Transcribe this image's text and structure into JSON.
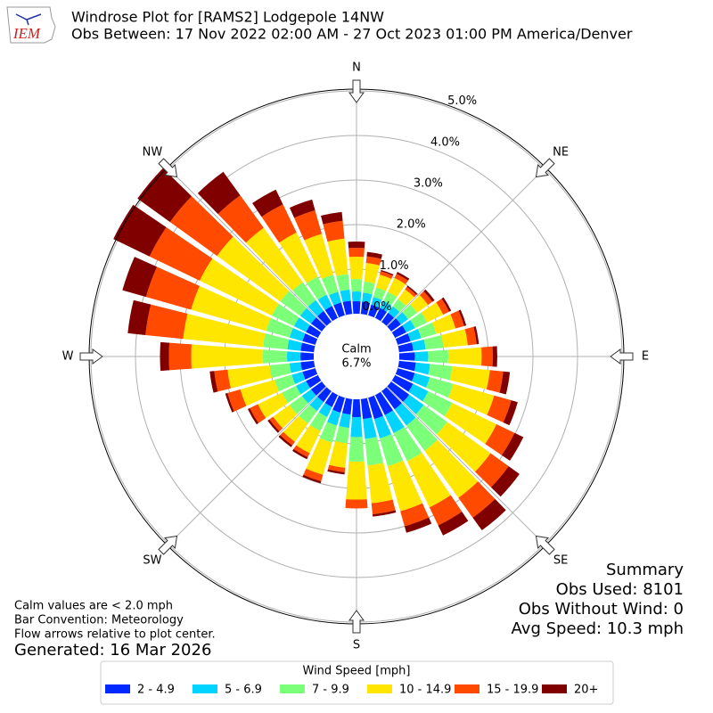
{
  "chart_data": {
    "type": "windrose",
    "logo_text": "IEM",
    "title": "Windrose Plot for [RAMS2] Lodgepole 14NW",
    "subtitle": "Obs Between: 17 Nov 2022 02:00 AM - 27 Oct 2023 01:00 PM America/Denver",
    "direction_labels": [
      "N",
      "NE",
      "E",
      "SE",
      "S",
      "SW",
      "W",
      "NW"
    ],
    "calm": {
      "label": "Calm",
      "value": 6.7,
      "value_label": "6.7%"
    },
    "x": [
      0,
      10,
      20,
      30,
      40,
      50,
      60,
      70,
      80,
      90,
      100,
      110,
      120,
      130,
      140,
      150,
      160,
      170,
      180,
      190,
      200,
      210,
      220,
      230,
      240,
      250,
      260,
      270,
      280,
      290,
      300,
      310,
      320,
      330,
      340,
      350
    ],
    "ylim": [
      0,
      5.04
    ],
    "yticks": [
      {
        "value": 0,
        "label": "0.0%"
      },
      {
        "value": 1,
        "label": "1.0%"
      },
      {
        "value": 2,
        "label": "2.0%"
      },
      {
        "value": 3,
        "label": "3.0%"
      },
      {
        "value": 4,
        "label": "4.0%"
      },
      {
        "value": 5,
        "label": "5.0%"
      }
    ],
    "grid": true,
    "legend_title": "Wind Speed [mph]",
    "series": [
      {
        "name": "2 - 4.9",
        "color": "#0028ff",
        "values": [
          0.28,
          0.28,
          0.25,
          0.25,
          0.25,
          0.27,
          0.28,
          0.3,
          0.32,
          0.35,
          0.38,
          0.4,
          0.45,
          0.5,
          0.5,
          0.5,
          0.5,
          0.45,
          0.4,
          0.35,
          0.35,
          0.3,
          0.3,
          0.3,
          0.3,
          0.3,
          0.3,
          0.3,
          0.3,
          0.3,
          0.3,
          0.3,
          0.3,
          0.3,
          0.3,
          0.3
        ]
      },
      {
        "name": "5 - 6.9",
        "color": "#00d4ff",
        "values": [
          0.22,
          0.2,
          0.18,
          0.18,
          0.18,
          0.2,
          0.22,
          0.25,
          0.28,
          0.3,
          0.32,
          0.35,
          0.38,
          0.4,
          0.45,
          0.45,
          0.45,
          0.45,
          0.45,
          0.3,
          0.3,
          0.25,
          0.25,
          0.25,
          0.25,
          0.25,
          0.25,
          0.3,
          0.3,
          0.3,
          0.3,
          0.3,
          0.3,
          0.28,
          0.25,
          0.25
        ]
      },
      {
        "name": "7 - 9.9",
        "color": "#7cff79",
        "values": [
          0.28,
          0.25,
          0.22,
          0.22,
          0.2,
          0.25,
          0.3,
          0.35,
          0.4,
          0.45,
          0.5,
          0.55,
          0.6,
          0.65,
          0.7,
          0.7,
          0.65,
          0.6,
          0.55,
          0.35,
          0.4,
          0.35,
          0.35,
          0.35,
          0.35,
          0.4,
          0.45,
          0.55,
          0.55,
          0.55,
          0.55,
          0.55,
          0.5,
          0.45,
          0.4,
          0.35
        ]
      },
      {
        "name": "10 - 14.9",
        "color": "#ffe600",
        "values": [
          0.5,
          0.42,
          0.3,
          0.35,
          0.27,
          0.3,
          0.4,
          0.45,
          0.55,
          0.75,
          0.85,
          0.95,
          1.1,
          1.2,
          1.3,
          1.15,
          1.05,
          0.85,
          0.85,
          0.55,
          0.75,
          0.55,
          0.5,
          0.45,
          0.6,
          0.8,
          0.95,
          1.6,
          1.8,
          1.75,
          1.8,
          1.75,
          1.5,
          1.1,
          0.95,
          0.8
        ]
      },
      {
        "name": "15 - 19.9",
        "color": "#ff4a00",
        "values": [
          0.2,
          0.15,
          0.08,
          0.1,
          0.07,
          0.12,
          0.15,
          0.2,
          0.2,
          0.25,
          0.3,
          0.4,
          0.45,
          0.5,
          0.55,
          0.45,
          0.35,
          0.25,
          0.2,
          0.1,
          0.15,
          0.1,
          0.1,
          0.1,
          0.2,
          0.3,
          0.3,
          0.5,
          0.85,
          1.05,
          1.25,
          1.3,
          0.9,
          0.7,
          0.55,
          0.4
        ]
      },
      {
        "name": "20+",
        "color": "#800000",
        "values": [
          0.14,
          0.1,
          0.03,
          0.05,
          0.03,
          0.06,
          0.05,
          0.05,
          0.05,
          0.1,
          0.15,
          0.15,
          0.22,
          0.3,
          0.35,
          0.25,
          0.15,
          0.05,
          0,
          0.05,
          0.05,
          0.05,
          0.05,
          0.05,
          0.05,
          0.05,
          0.1,
          0.2,
          0.4,
          0.55,
          0.9,
          0.9,
          0.65,
          0.37,
          0.25,
          0.2
        ]
      }
    ],
    "notes": [
      "Calm values are < 2.0 mph",
      "Bar Convention: Meteorology",
      "Flow arrows relative to plot center."
    ],
    "generated": "Generated: 16 Mar 2026",
    "summary": [
      "Summary",
      "Obs Used: 8101",
      "Obs Without Wind: 0",
      "Avg Speed: 10.3 mph"
    ]
  }
}
